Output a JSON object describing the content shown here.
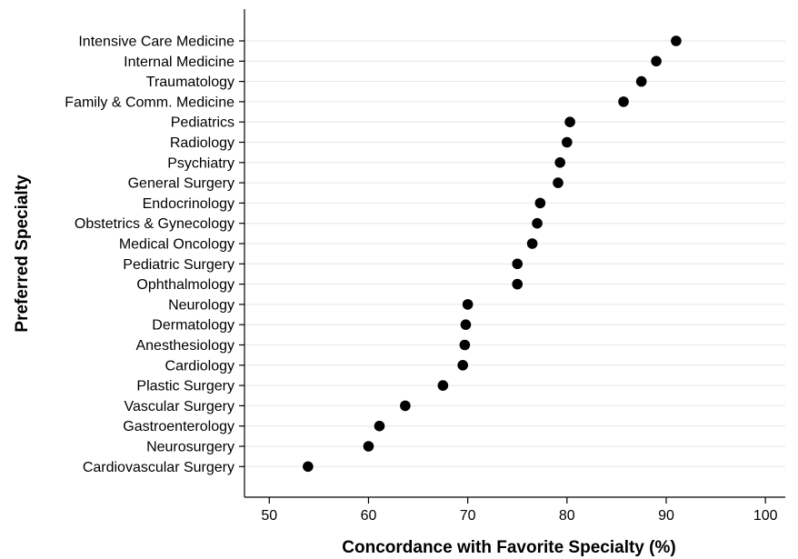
{
  "chart_data": {
    "type": "scatter",
    "orientation": "horizontal-dot",
    "xlabel": "Concordance with Favorite Specialty (%)",
    "ylabel": "Preferred Specialty",
    "xlim": [
      47.5,
      102
    ],
    "xticks": [
      50,
      60,
      70,
      80,
      90,
      100
    ],
    "grid": true,
    "marker_color": "#000000",
    "categories": [
      "Intensive Care Medicine",
      "Internal Medicine",
      "Traumatology",
      "Family & Comm. Medicine",
      "Pediatrics",
      "Radiology",
      "Psychiatry",
      "General Surgery",
      "Endocrinology",
      "Obstetrics & Gynecology",
      "Medical Oncology",
      "Pediatric Surgery",
      "Ophthalmology",
      "Neurology",
      "Dermatology",
      "Anesthesiology",
      "Cardiology",
      "Plastic Surgery",
      "Vascular Surgery",
      "Gastroenterology",
      "Neurosurgery",
      "Cardiovascular Surgery"
    ],
    "values": [
      91,
      89,
      87.5,
      85.7,
      80.3,
      80,
      79.3,
      79.1,
      77.3,
      77,
      76.5,
      75,
      75,
      70,
      69.8,
      69.7,
      69.5,
      67.5,
      63.7,
      61.1,
      60,
      53.9
    ]
  }
}
